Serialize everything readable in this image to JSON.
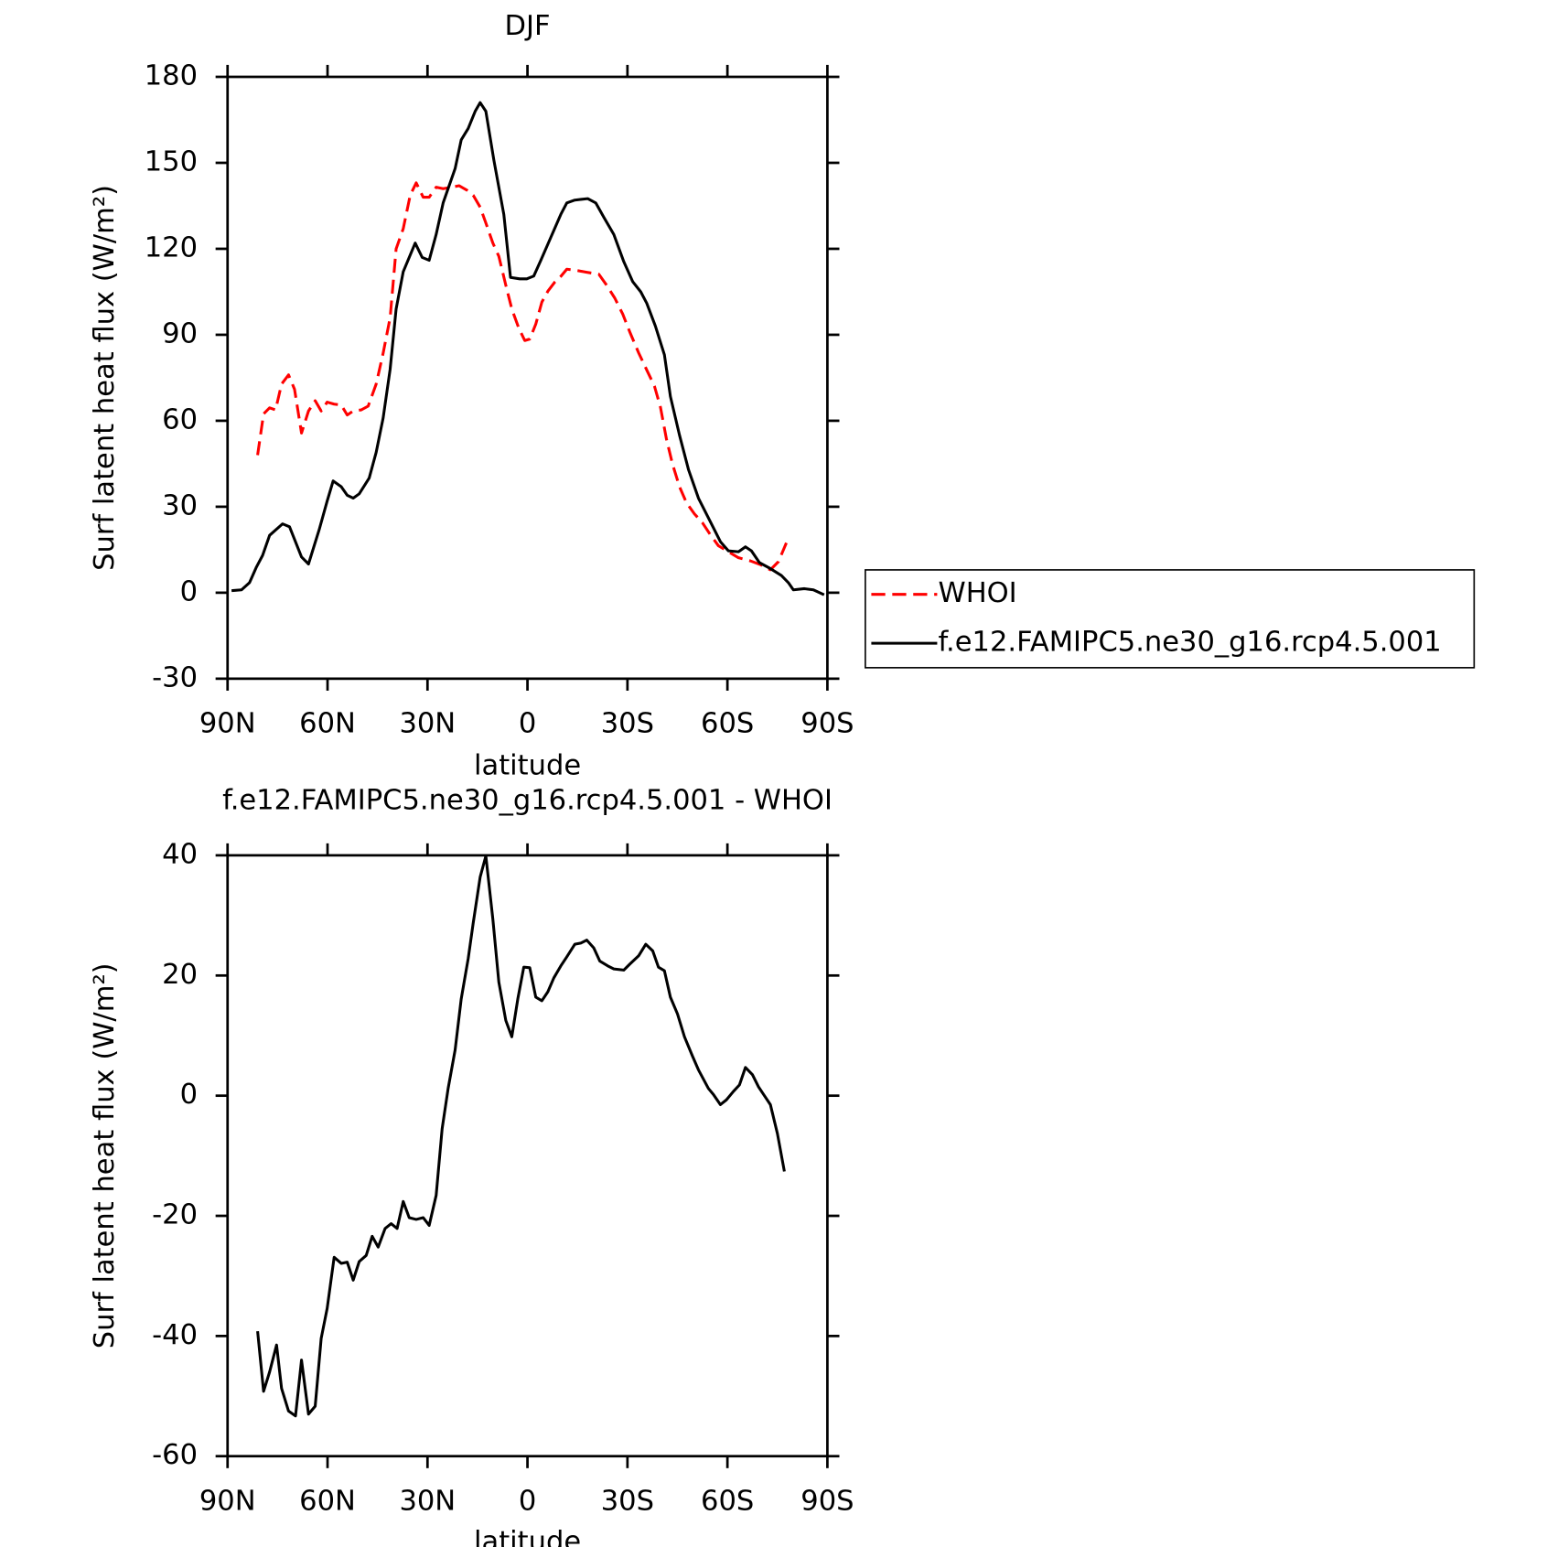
{
  "chart_data": [
    {
      "type": "line",
      "title": "DJF",
      "xlabel": "latitude",
      "ylabel": "Surf latent heat flux (W/m²)",
      "xlim": [
        90,
        -90
      ],
      "xticks": [
        {
          "value": 90,
          "label": "90N"
        },
        {
          "value": 60,
          "label": "60N"
        },
        {
          "value": 30,
          "label": "30N"
        },
        0,
        {
          "value": -30,
          "label": "30S"
        },
        {
          "value": -60,
          "label": "60S"
        },
        {
          "value": -90,
          "label": "90S"
        }
      ],
      "ylim": [
        -30,
        180
      ],
      "yticks": [
        -30,
        0,
        30,
        60,
        90,
        120,
        150,
        180
      ],
      "legend": "right",
      "series": [
        {
          "name": "WHOI",
          "color": "#ff0000",
          "linestyle": "dashed",
          "x": [
            81.0,
            79.2,
            77.4,
            75.6,
            73.8,
            71.7,
            69.9,
            67.8,
            65.7,
            63.7,
            61.9,
            60.1,
            58.0,
            55.9,
            54.1,
            52.3,
            49.9,
            47.8,
            45.4,
            43.3,
            41.2,
            39.4,
            37.3,
            35.2,
            33.4,
            31.3,
            29.5,
            27.4,
            25.3,
            22.9,
            20.5,
            18.1,
            16.3,
            14.2,
            12.5,
            10.4,
            8.6,
            6.5,
            4.7,
            2.6,
            0.8,
            -0.7,
            -2.5,
            -4.3,
            -6.1,
            -8.2,
            -10.0,
            -11.8,
            -14.5,
            -17.8,
            -21.4,
            -23.5,
            -26.2,
            -28.6,
            -30.7,
            -33.4,
            -35.8,
            -38.1,
            -39.9,
            -41.7,
            -43.5,
            -45.6,
            -47.7,
            -50.1,
            -52.5,
            -54.9,
            -57.3,
            -60.3,
            -63.3,
            -66.9,
            -69.9,
            -72.9,
            -75.3,
            -77.7
          ],
          "values": [
            48,
            62.4,
            64.5,
            63.8,
            72.8,
            76,
            71,
            55.7,
            63.4,
            67,
            63.4,
            66.5,
            65.8,
            65.5,
            62,
            63.4,
            63.8,
            65.1,
            72.8,
            83.6,
            96,
            120,
            127,
            138.7,
            143,
            138,
            138,
            141.5,
            141,
            141.5,
            142,
            140.4,
            138.7,
            134.5,
            129,
            122,
            117.4,
            107.3,
            99,
            92.3,
            88,
            88.5,
            93.7,
            101.4,
            105.2,
            108.4,
            110.4,
            112.9,
            112.5,
            111.8,
            111.1,
            107.7,
            102.8,
            97.2,
            91,
            83.6,
            77.7,
            72.1,
            64.8,
            53.7,
            45,
            37,
            31.4,
            27.5,
            24.4,
            20.2,
            16.4,
            14.3,
            12.2,
            11.1,
            9.8,
            8,
            10.8,
            17.4
          ]
        },
        {
          "name": "f.e12.FAMIPC5.ne30_g16.rcp4.5.001",
          "color": "#000000",
          "linestyle": "solid",
          "x": [
            88.8,
            85.8,
            83.4,
            81.3,
            79.5,
            77.4,
            73.5,
            71.4,
            67.8,
            65.7,
            62.5,
            60.1,
            58.3,
            55.9,
            54.1,
            52.3,
            50.5,
            47.5,
            45.4,
            43.3,
            41.2,
            39.4,
            37.3,
            33.7,
            31.6,
            29.5,
            27.4,
            25.3,
            21.7,
            19.9,
            17.8,
            15.7,
            14.2,
            12.5,
            10.1,
            7.1,
            5.1,
            2.3,
            0.2,
            -1.9,
            -4.0,
            -7.0,
            -10.0,
            -11.8,
            -14.2,
            -18.1,
            -20.5,
            -22.9,
            -25.9,
            -28.9,
            -31.6,
            -34.0,
            -35.8,
            -38.4,
            -41.1,
            -42.9,
            -45.6,
            -48.3,
            -51.3,
            -54.9,
            -57.9,
            -60.3,
            -63.3,
            -65.4,
            -67.2,
            -69.6,
            -72.9,
            -76.2,
            -78.3,
            -79.8,
            -83.1,
            -85.8,
            -89.0
          ],
          "values": [
            0.7,
            1,
            3.5,
            9,
            13,
            20,
            24,
            23,
            12.5,
            10,
            22,
            32,
            39,
            37,
            34,
            33,
            34.5,
            40,
            49,
            61,
            78,
            99,
            112,
            122,
            117,
            116,
            125,
            136,
            148,
            158,
            162,
            168,
            171,
            168,
            151,
            132,
            110,
            109.5,
            109.5,
            110.5,
            116,
            124,
            132,
            136,
            137,
            137.5,
            136,
            131,
            125,
            115.5,
            108.5,
            105,
            101,
            93,
            83,
            68.5,
            55,
            43,
            33,
            24.7,
            17.8,
            14.6,
            14.3,
            16,
            14.6,
            10.5,
            8.4,
            6,
            3.5,
            1,
            1.4,
            1,
            -0.7
          ]
        }
      ]
    },
    {
      "type": "line",
      "title": "f.e12.FAMIPC5.ne30_g16.rcp4.5.001 - WHOI",
      "xlabel": "latitude",
      "ylabel": "Surf latent heat flux (W/m²)",
      "xlim": [
        90,
        -90
      ],
      "xticks": [
        {
          "value": 90,
          "label": "90N"
        },
        {
          "value": 60,
          "label": "60N"
        },
        {
          "value": 30,
          "label": "30N"
        },
        0,
        {
          "value": -30,
          "label": "30S"
        },
        {
          "value": -60,
          "label": "60S"
        },
        {
          "value": -90,
          "label": "90S"
        }
      ],
      "ylim": [
        -60,
        40
      ],
      "yticks": [
        -60,
        -40,
        -20,
        0,
        20,
        40
      ],
      "series": [
        {
          "color": "#000000",
          "linestyle": "solid",
          "x": [
            81.0,
            79.2,
            77.4,
            75.3,
            73.8,
            71.7,
            69.6,
            67.8,
            65.7,
            63.7,
            61.9,
            60.1,
            58.0,
            55.9,
            54.1,
            52.3,
            50.5,
            48.4,
            46.6,
            44.8,
            42.7,
            40.9,
            39.1,
            37.3,
            35.5,
            33.4,
            31.3,
            29.5,
            27.4,
            25.6,
            23.8,
            21.7,
            19.9,
            17.8,
            16.3,
            14.2,
            12.5,
            10.4,
            8.6,
            6.5,
            4.7,
            2.9,
            1.1,
            -0.7,
            -2.5,
            -4.3,
            -6.1,
            -7.9,
            -10.0,
            -11.8,
            -14.2,
            -16.0,
            -17.8,
            -19.9,
            -21.7,
            -24.1,
            -25.9,
            -28.9,
            -30.7,
            -33.4,
            -35.5,
            -37.6,
            -39.3,
            -41.1,
            -42.9,
            -45.0,
            -47.1,
            -49.5,
            -51.3,
            -54.3,
            -55.8,
            -57.9,
            -59.7,
            -61.8,
            -63.6,
            -65.4,
            -67.5,
            -69.3,
            -71.1,
            -72.9,
            -75.0,
            -77.1
          ],
          "values": [
            -39.2,
            -49.2,
            -46,
            -41.5,
            -48.7,
            -52.5,
            -53.3,
            -44,
            -53,
            -51.7,
            -40.4,
            -35.4,
            -26.9,
            -27.9,
            -27.7,
            -30.7,
            -27.6,
            -26.6,
            -23.4,
            -25.2,
            -22.1,
            -21.3,
            -22.1,
            -17.6,
            -20.3,
            -20.6,
            -20.3,
            -21.6,
            -16.6,
            -5.5,
            1.2,
            7.6,
            16.1,
            22.8,
            28.7,
            36.4,
            39.9,
            29.4,
            18.9,
            12.5,
            9.8,
            16.1,
            21.4,
            21.3,
            16.4,
            15.8,
            17.3,
            19.6,
            21.6,
            23.1,
            25.2,
            25.4,
            25.9,
            24.6,
            22.4,
            21.6,
            21.1,
            20.9,
            21.9,
            23.3,
            25.2,
            24.1,
            21.4,
            20.8,
            16.4,
            13.6,
            9.8,
            6.6,
            4.3,
            1.2,
            0.2,
            -1.5,
            -0.7,
            0.7,
            1.8,
            4.7,
            3.5,
            1.5,
            0,
            -1.5,
            -6.3,
            -12.6
          ]
        }
      ]
    }
  ]
}
